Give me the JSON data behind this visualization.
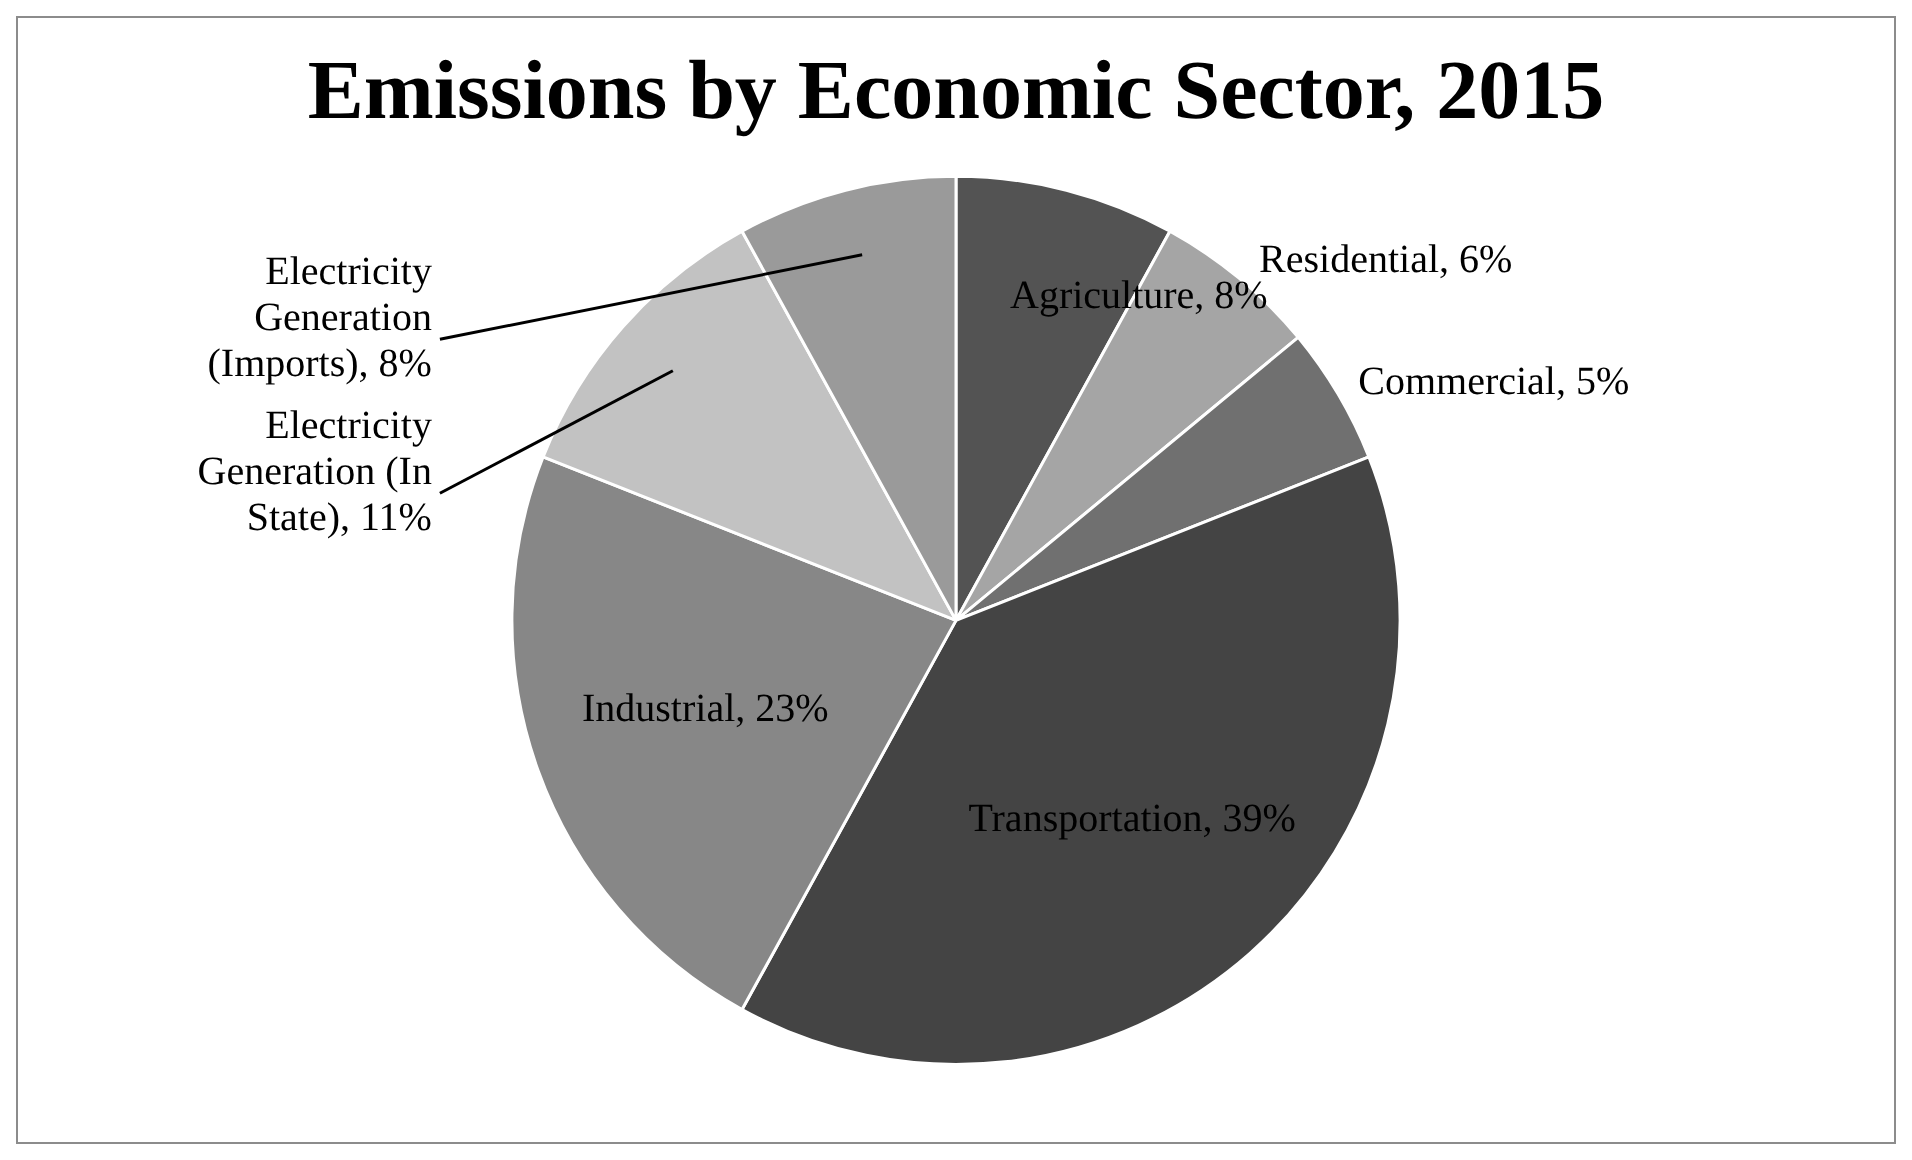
{
  "chart_data": {
    "type": "pie",
    "title": "Emissions by Economic Sector, 2015",
    "categories": [
      "Agriculture",
      "Residential",
      "Commercial",
      "Transportation",
      "Industrial",
      "Electricity Generation (In State)",
      "Electricity Generation (Imports)"
    ],
    "values": [
      8,
      6,
      5,
      39,
      23,
      11,
      8
    ],
    "value_labels": [
      "8%",
      "6%",
      "5%",
      "39%",
      "23%",
      "11%",
      "8%"
    ],
    "colors": [
      "#535353",
      "#a5a5a5",
      "#707070",
      "#444444",
      "#878787",
      "#c2c2c2",
      "#9a9a9a"
    ],
    "legend": false
  }
}
